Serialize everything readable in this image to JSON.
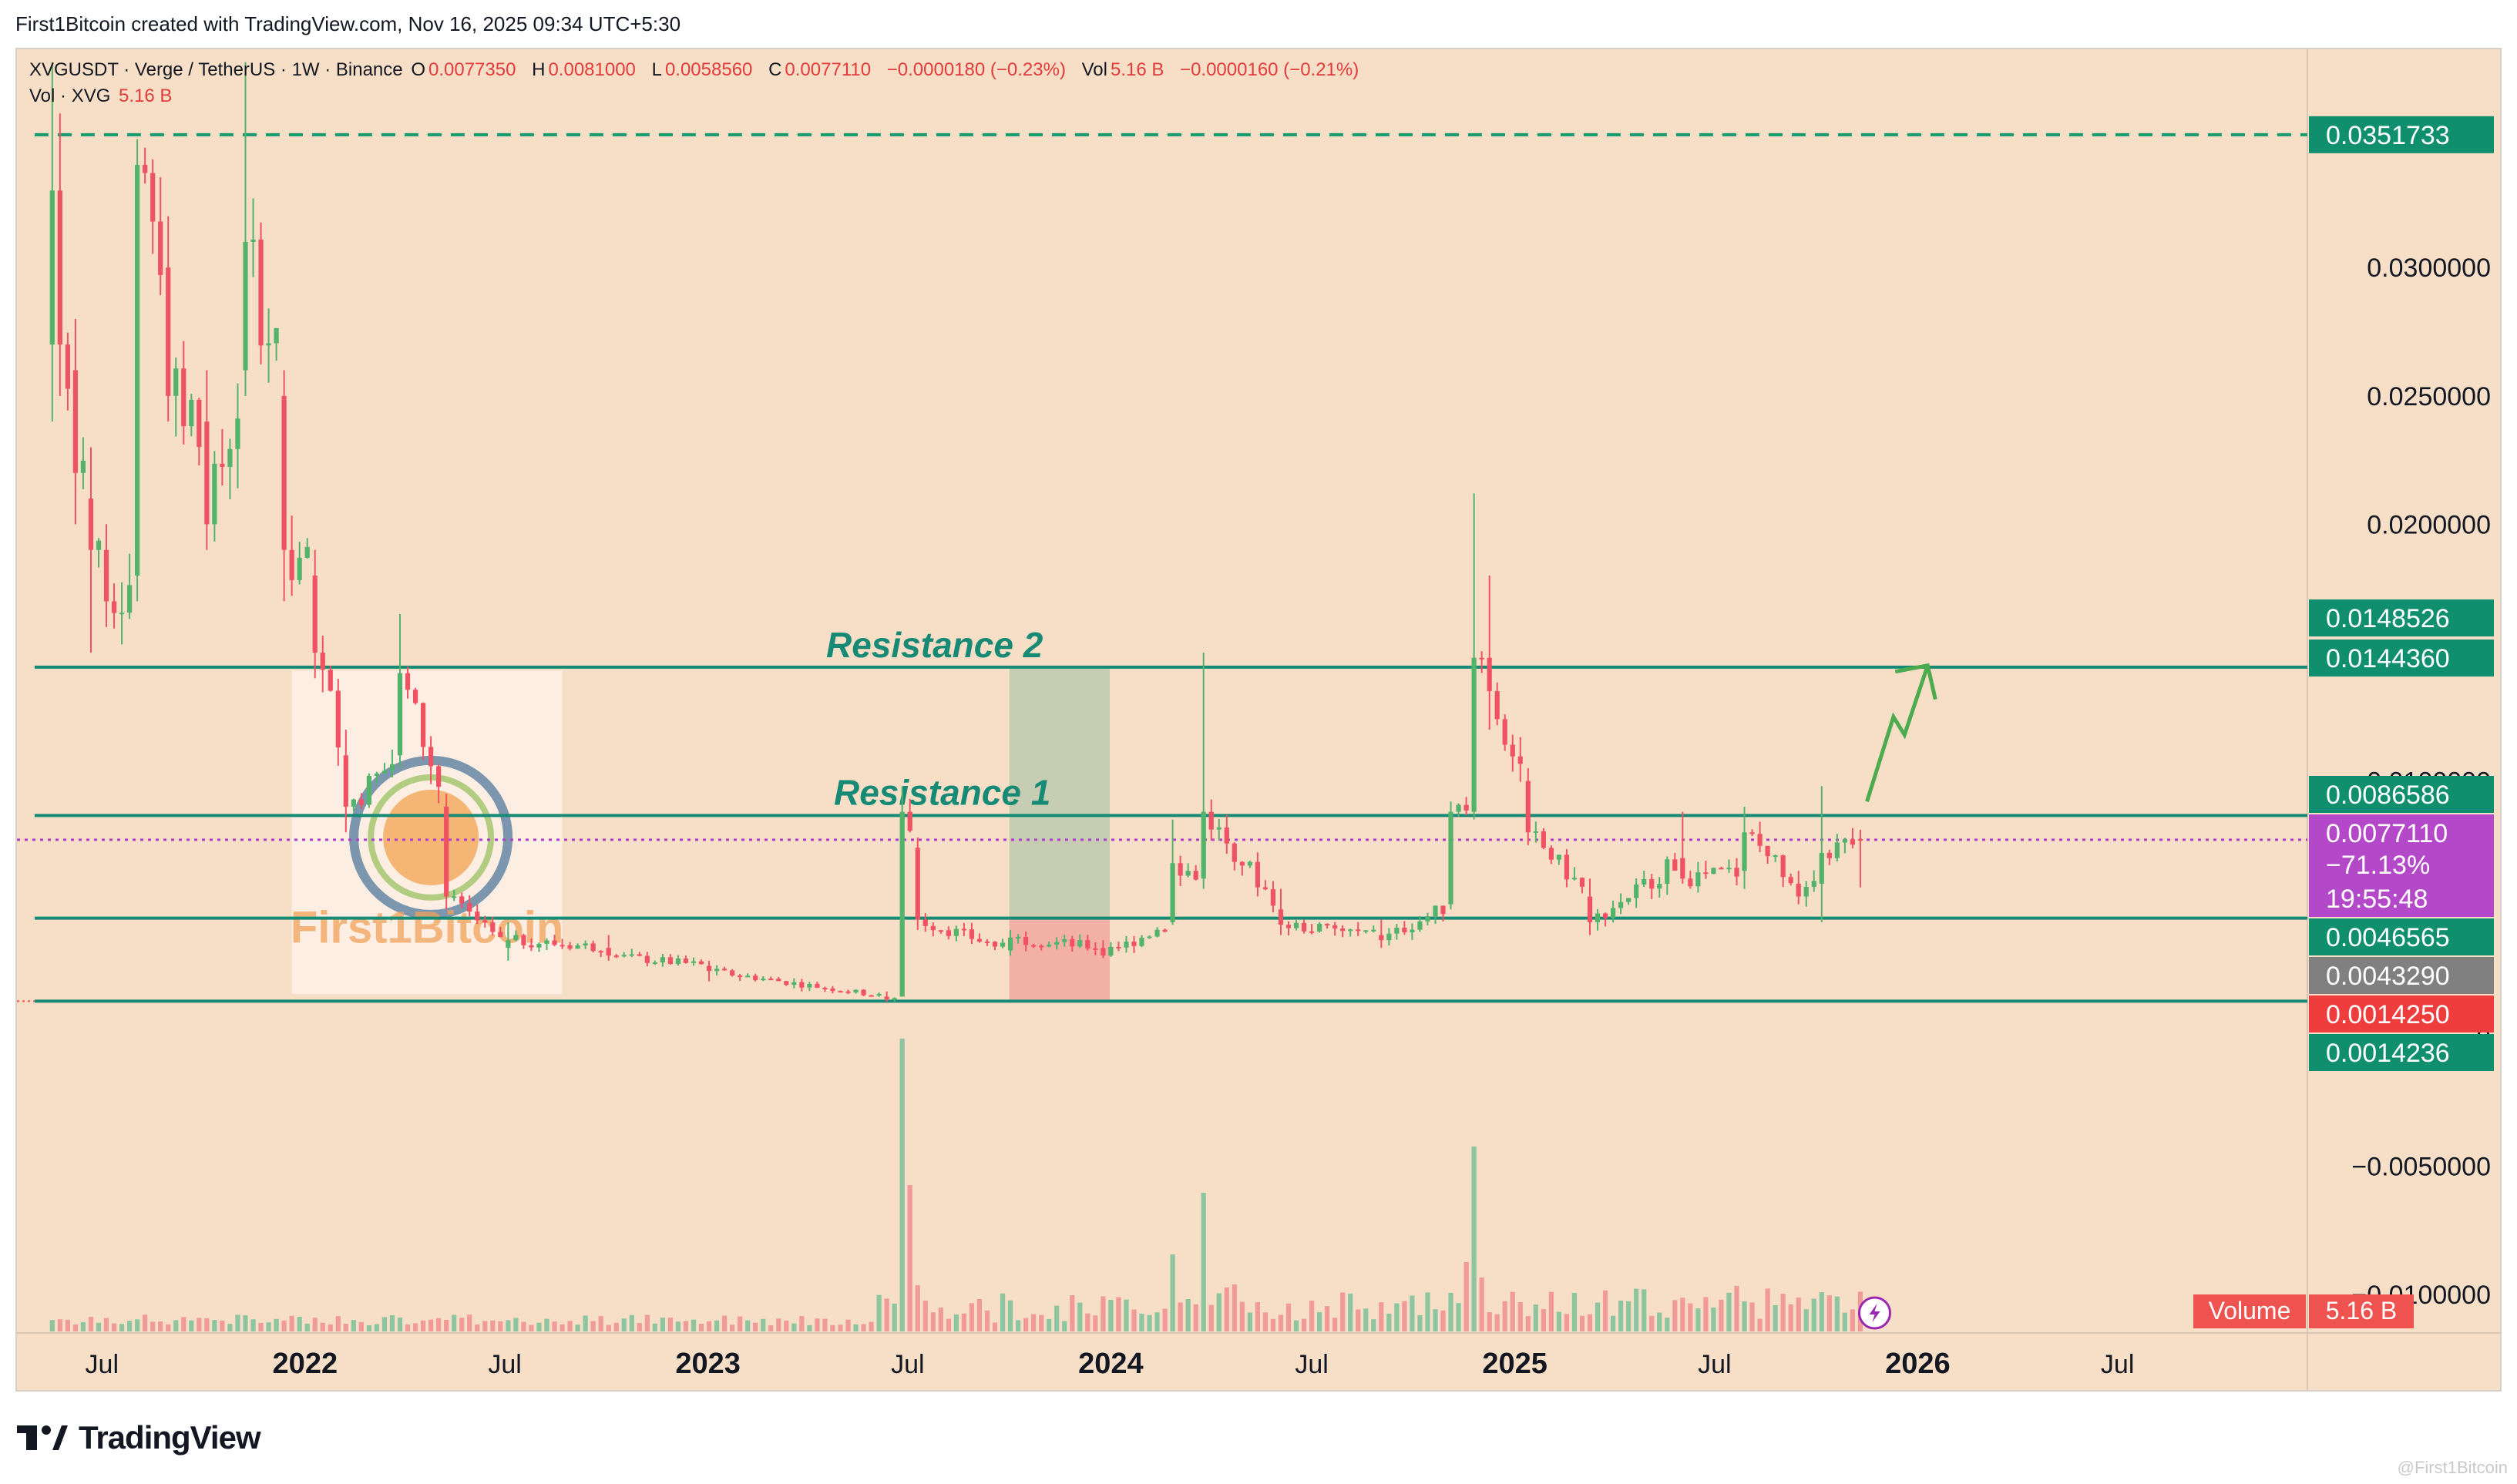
{
  "header": {
    "credit": "First1Bitcoin created with TradingView.com, Nov 16, 2025 09:34 UTC+5:30"
  },
  "legend": {
    "symbol_line": "XVGUSDT · Verge / TetherUS · 1W · Binance",
    "open_label": "O",
    "open": "0.0077350",
    "high_label": "H",
    "high": "0.0081000",
    "low_label": "L",
    "low": "0.0058560",
    "close_label": "C",
    "close": "0.0077110",
    "change": "−0.0000180 (−0.23%)",
    "vol_label": "Vol",
    "vol": "5.16 B",
    "vol_change": "−0.0000160 (−0.21%)",
    "vol_line_label": "Vol · XVG",
    "vol_line_value": "5.16 B"
  },
  "colors": {
    "background": "#f6dfc6",
    "up": "#53b36b",
    "down": "#ef5363",
    "level_line": "#178a75",
    "target_dash": "#159a6f",
    "annotation_text": "#178a75",
    "arrow": "#4caa4f",
    "current_price_line": "#b140c8",
    "badge_green": "#0f8f6d",
    "badge_purple": "#b349c8",
    "badge_gray": "#808080",
    "badge_red": "#ef3c3c",
    "volume_badge": "#ef5350"
  },
  "annotations": {
    "resistance_2": "Resistance 2",
    "resistance_1": "Resistance 1",
    "watermark_text": "First1Bitcoin"
  },
  "price_badges": [
    {
      "text": "0.0351733",
      "color": "green"
    },
    {
      "text": "0.0148526",
      "color": "green"
    },
    {
      "text": "0.0144360",
      "color": "green"
    },
    {
      "text": "0.0086586",
      "color": "green"
    },
    {
      "text": "0.0077110",
      "color": "purple"
    },
    {
      "text": "−71.13%",
      "color": "purple"
    },
    {
      "text": "19:55:48",
      "color": "purple"
    },
    {
      "text": "0.0046565",
      "color": "green"
    },
    {
      "text": "0.0043290",
      "color": "gray"
    },
    {
      "text": "0.0014250",
      "color": "red"
    },
    {
      "text": "0.0014236",
      "color": "green"
    }
  ],
  "volume_badge": {
    "label": "Volume",
    "value": "5.16 B"
  },
  "footer": {
    "brand": "TradingView",
    "watermark": "@First1Bitcoin"
  },
  "chart_data": {
    "type": "candlestick",
    "title": "XVGUSDT · Verge / TetherUS · 1W · Binance",
    "y_axis_ticks": [
      "0.0300000",
      "0.0250000",
      "0.0200000",
      "0.0100000",
      "0",
      "−0.0050000",
      "−0.0100000"
    ],
    "y_tick_values": [
      0.03,
      0.025,
      0.02,
      0.01,
      0,
      -0.005,
      -0.01
    ],
    "x_axis_ticks": [
      "Jul",
      "2022",
      "Jul",
      "2023",
      "Jul",
      "2024",
      "Jul",
      "2025",
      "Jul",
      "2026",
      "Jul"
    ],
    "x_tick_dates": [
      "2021-07-01",
      "2022-01-01",
      "2022-07-01",
      "2023-01-01",
      "2023-07-01",
      "2024-01-01",
      "2024-07-01",
      "2025-01-01",
      "2025-07-01",
      "2026-01-01",
      "2026-07-01"
    ],
    "x_range": [
      "2021-04-15",
      "2026-12-20"
    ],
    "y_range": [
      -0.0115,
      0.0385
    ],
    "horizontal_levels": [
      {
        "value": 0.0351733,
        "style": "dashed",
        "start": "2021-05-01"
      },
      {
        "value": 0.014436,
        "label": "Resistance 2",
        "start": "2021-05-01"
      },
      {
        "value": 0.0086586,
        "label": "Resistance 1",
        "start": "2021-05-01"
      },
      {
        "value": 0.0046565,
        "start": "2021-05-01"
      },
      {
        "value": 0.0014236,
        "start": "2021-05-01"
      }
    ],
    "current_price": 0.007711,
    "highlight_box": {
      "start": "2023-10-01",
      "end": "2023-12-31",
      "upper": 0.0144,
      "split": 0.0046,
      "lower": 0.0014
    },
    "projection_arrow": [
      [
        "2025-11-16",
        0.0092
      ],
      [
        "2025-12-10",
        0.0125
      ],
      [
        "2025-12-20",
        0.0118
      ],
      [
        "2026-01-10",
        0.0145
      ]
    ],
    "ohlc_weekly_approx": [
      {
        "date": "2021-05-17",
        "o": 0.027,
        "h": 0.038,
        "l": 0.024,
        "c": 0.033
      },
      {
        "date": "2021-05-24",
        "o": 0.033,
        "h": 0.036,
        "l": 0.025,
        "c": 0.027
      },
      {
        "date": "2021-06-07",
        "o": 0.026,
        "h": 0.028,
        "l": 0.02,
        "c": 0.022
      },
      {
        "date": "2021-06-21",
        "o": 0.021,
        "h": 0.023,
        "l": 0.015,
        "c": 0.019
      },
      {
        "date": "2021-07-05",
        "o": 0.019,
        "h": 0.02,
        "l": 0.016,
        "c": 0.017
      },
      {
        "date": "2021-08-02",
        "o": 0.018,
        "h": 0.035,
        "l": 0.017,
        "c": 0.034
      },
      {
        "date": "2021-08-30",
        "o": 0.03,
        "h": 0.032,
        "l": 0.024,
        "c": 0.025
      },
      {
        "date": "2021-10-04",
        "o": 0.024,
        "h": 0.026,
        "l": 0.019,
        "c": 0.02
      },
      {
        "date": "2021-11-08",
        "o": 0.026,
        "h": 0.038,
        "l": 0.025,
        "c": 0.031
      },
      {
        "date": "2021-12-13",
        "o": 0.025,
        "h": 0.026,
        "l": 0.017,
        "c": 0.019
      },
      {
        "date": "2022-01-10",
        "o": 0.018,
        "h": 0.019,
        "l": 0.014,
        "c": 0.015
      },
      {
        "date": "2022-02-07",
        "o": 0.011,
        "h": 0.012,
        "l": 0.008,
        "c": 0.009
      },
      {
        "date": "2022-03-28",
        "o": 0.011,
        "h": 0.0165,
        "l": 0.0105,
        "c": 0.0142
      },
      {
        "date": "2022-05-09",
        "o": 0.009,
        "h": 0.0095,
        "l": 0.005,
        "c": 0.0055
      },
      {
        "date": "2022-07-04",
        "o": 0.0035,
        "h": 0.0045,
        "l": 0.003,
        "c": 0.0038
      },
      {
        "date": "2022-10-03",
        "o": 0.0035,
        "h": 0.004,
        "l": 0.003,
        "c": 0.0032
      },
      {
        "date": "2023-01-02",
        "o": 0.0028,
        "h": 0.003,
        "l": 0.0022,
        "c": 0.0026
      },
      {
        "date": "2023-06-12",
        "o": 0.0016,
        "h": 0.0018,
        "l": 0.0014,
        "c": 0.0015
      },
      {
        "date": "2023-06-26",
        "o": 0.0016,
        "h": 0.0098,
        "l": 0.0016,
        "c": 0.0088
      },
      {
        "date": "2023-07-10",
        "o": 0.0074,
        "h": 0.0078,
        "l": 0.0042,
        "c": 0.0046
      },
      {
        "date": "2023-10-02",
        "o": 0.0034,
        "h": 0.0042,
        "l": 0.0032,
        "c": 0.0039
      },
      {
        "date": "2023-12-25",
        "o": 0.0035,
        "h": 0.0038,
        "l": 0.0031,
        "c": 0.0032
      },
      {
        "date": "2024-02-26",
        "o": 0.0045,
        "h": 0.0085,
        "l": 0.0044,
        "c": 0.0068
      },
      {
        "date": "2024-03-25",
        "o": 0.0062,
        "h": 0.015,
        "l": 0.0058,
        "c": 0.0088
      },
      {
        "date": "2024-06-03",
        "o": 0.005,
        "h": 0.0058,
        "l": 0.004,
        "c": 0.0044
      },
      {
        "date": "2024-09-02",
        "o": 0.004,
        "h": 0.0046,
        "l": 0.0035,
        "c": 0.0038
      },
      {
        "date": "2024-11-04",
        "o": 0.0052,
        "h": 0.0092,
        "l": 0.005,
        "c": 0.0088
      },
      {
        "date": "2024-11-25",
        "o": 0.0088,
        "h": 0.0212,
        "l": 0.0085,
        "c": 0.0148
      },
      {
        "date": "2024-12-09",
        "o": 0.0148,
        "h": 0.018,
        "l": 0.012,
        "c": 0.0135
      },
      {
        "date": "2025-01-13",
        "o": 0.01,
        "h": 0.0105,
        "l": 0.0075,
        "c": 0.008
      },
      {
        "date": "2025-03-10",
        "o": 0.0055,
        "h": 0.0062,
        "l": 0.004,
        "c": 0.0045
      },
      {
        "date": "2025-06-02",
        "o": 0.007,
        "h": 0.0088,
        "l": 0.006,
        "c": 0.0062
      },
      {
        "date": "2025-07-28",
        "o": 0.0065,
        "h": 0.009,
        "l": 0.0058,
        "c": 0.008
      },
      {
        "date": "2025-09-15",
        "o": 0.006,
        "h": 0.0065,
        "l": 0.0052,
        "c": 0.0055
      },
      {
        "date": "2025-10-06",
        "o": 0.006,
        "h": 0.0098,
        "l": 0.0045,
        "c": 0.0072
      },
      {
        "date": "2025-11-10",
        "o": 0.007735,
        "h": 0.0081,
        "l": 0.005856,
        "c": 0.007711
      }
    ]
  }
}
